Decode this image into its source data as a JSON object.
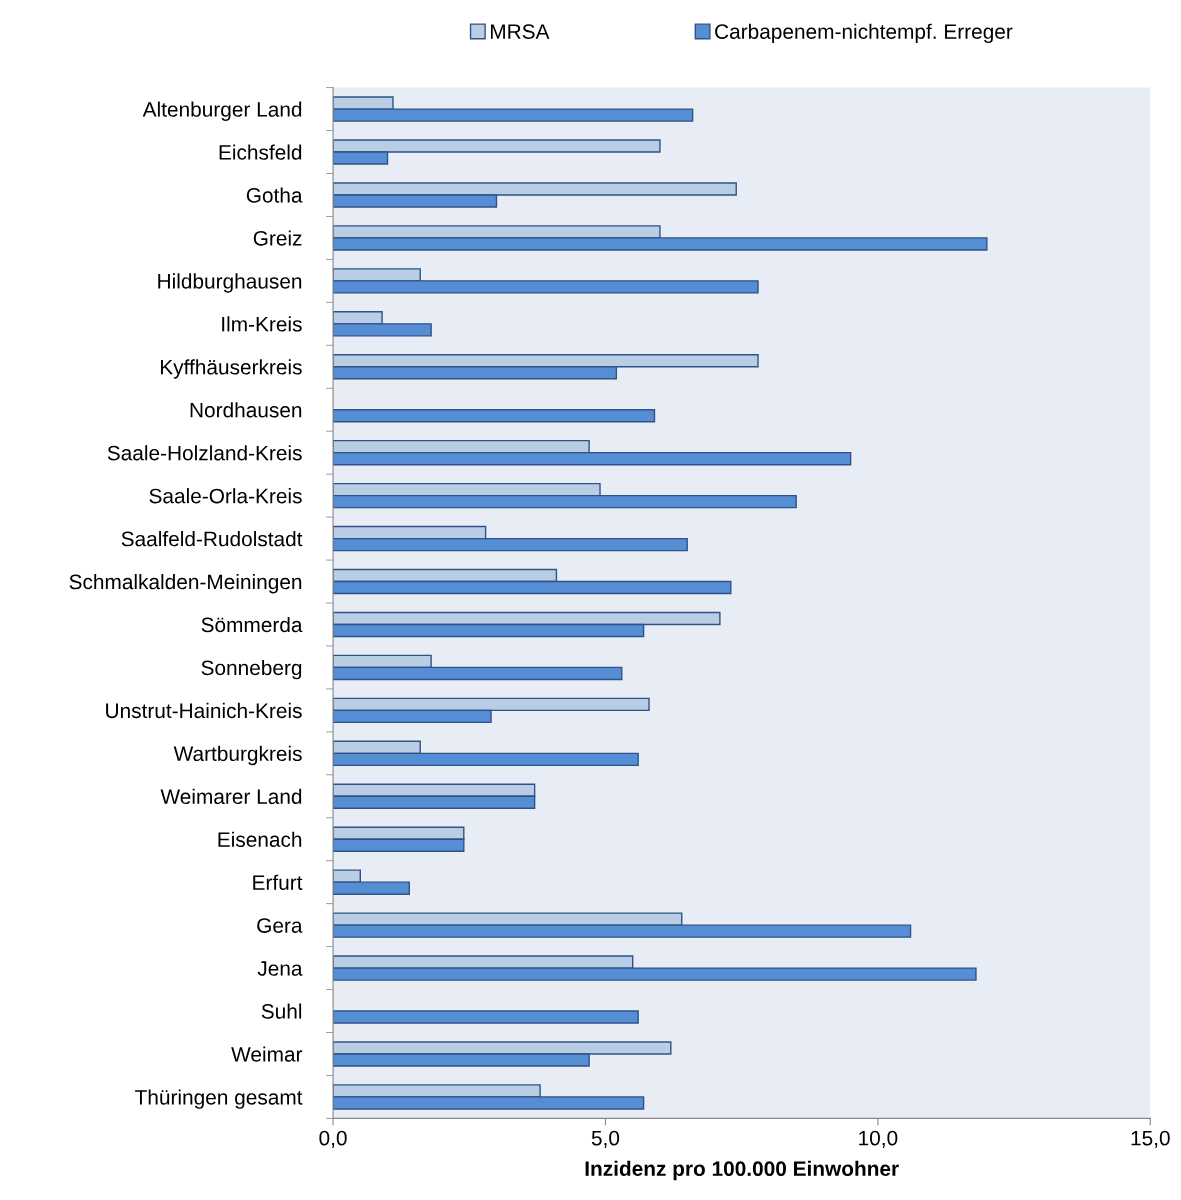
{
  "chart_data": {
    "type": "bar",
    "orientation": "horizontal",
    "xlabel": "Inzidenz pro 100.000 Einwohner",
    "categories": [
      "Altenburger Land",
      "Eichsfeld",
      "Gotha",
      "Greiz",
      "Hildburghausen",
      "Ilm-Kreis",
      "Kyffhäuserkreis",
      "Nordhausen",
      "Saale-Holzland-Kreis",
      "Saale-Orla-Kreis",
      "Saalfeld-Rudolstadt",
      "Schmalkalden-Meiningen",
      "Sömmerda",
      "Sonneberg",
      "Unstrut-Hainich-Kreis",
      "Wartburgkreis",
      "Weimarer Land",
      "Eisenach",
      "Erfurt",
      "Gera",
      "Jena",
      "Suhl",
      "Weimar",
      "Thüringen gesamt"
    ],
    "series": [
      {
        "name": "MRSA",
        "color": "#b9cde5",
        "values": [
          1.1,
          6.0,
          7.4,
          6.0,
          1.6,
          0.9,
          7.8,
          null,
          4.7,
          4.9,
          2.8,
          4.1,
          7.1,
          1.8,
          5.8,
          1.6,
          3.7,
          2.4,
          0.5,
          6.4,
          5.5,
          null,
          6.2,
          3.8
        ]
      },
      {
        "name": "Carbapenem-nichtempf. Erreger",
        "color": "#558ed5",
        "values": [
          6.6,
          1.0,
          3.0,
          12.0,
          7.8,
          1.8,
          5.2,
          5.9,
          9.5,
          8.5,
          6.5,
          7.3,
          5.7,
          5.3,
          2.9,
          5.6,
          3.7,
          2.4,
          1.4,
          10.6,
          11.8,
          5.6,
          4.7,
          5.7
        ]
      }
    ],
    "xlim": [
      0,
      15
    ],
    "xticks": [
      {
        "value": 0,
        "label": "0,0"
      },
      {
        "value": 5,
        "label": "5,0"
      },
      {
        "value": 10,
        "label": "10,0"
      },
      {
        "value": 15,
        "label": "15,0"
      }
    ],
    "grid": false,
    "legend": "top"
  }
}
